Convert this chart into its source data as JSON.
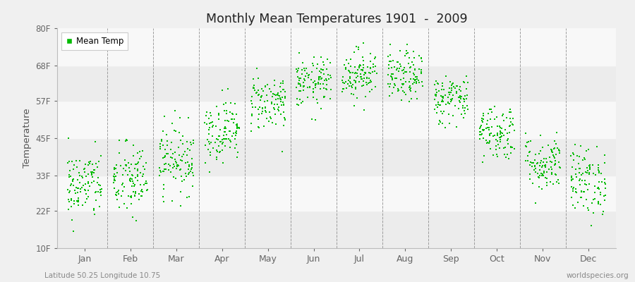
{
  "title": "Monthly Mean Temperatures 1901  -  2009",
  "ylabel": "Temperature",
  "ytick_labels": [
    "10F",
    "22F",
    "33F",
    "45F",
    "57F",
    "68F",
    "80F"
  ],
  "ytick_values": [
    10,
    22,
    33,
    45,
    57,
    68,
    80
  ],
  "ylim": [
    10,
    80
  ],
  "month_labels": [
    "Jan",
    "Feb",
    "Mar",
    "Apr",
    "May",
    "Jun",
    "Jul",
    "Aug",
    "Sep",
    "Oct",
    "Nov",
    "Dec"
  ],
  "footer_left": "Latitude 50.25 Longitude 10.75",
  "footer_right": "worldspecies.org",
  "legend_label": "Mean Temp",
  "dot_color": "#00bb00",
  "fig_bg": "#f0f0f0",
  "plot_bg": "#ffffff",
  "band_colors": [
    "#efefef",
    "#f8f8f8",
    "#efefef",
    "#f8f8f8",
    "#efefef",
    "#f8f8f8"
  ],
  "monthly_mean_F": [
    30.0,
    31.5,
    38.5,
    47.5,
    56.5,
    62.5,
    65.5,
    64.5,
    57.5,
    47.0,
    37.0,
    31.5
  ],
  "monthly_std_F": [
    5.5,
    6.0,
    5.5,
    5.0,
    4.5,
    4.0,
    4.0,
    4.0,
    4.0,
    4.5,
    4.5,
    5.5
  ],
  "n_years": 109,
  "seed": 42
}
